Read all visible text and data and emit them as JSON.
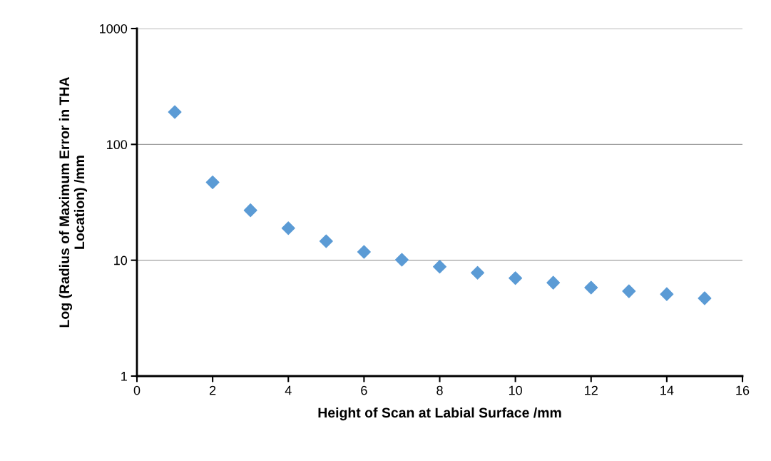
{
  "chart_data": {
    "type": "scatter",
    "xlabel": "Height of Scan at Labial Surface /mm",
    "ylabel": "Log (Radius of Maximum Error in THA\nLocation) /mm",
    "x": [
      1,
      2,
      3,
      4,
      5,
      6,
      7,
      8,
      9,
      10,
      11,
      12,
      13,
      14,
      15
    ],
    "series": [
      {
        "color": "#5b9bd5",
        "values": [
          190,
          47,
          27,
          18.9,
          14.6,
          11.8,
          10.1,
          8.8,
          7.8,
          7.0,
          6.4,
          5.8,
          5.4,
          5.1,
          4.7
        ]
      }
    ],
    "xlim": [
      0,
      16
    ],
    "xticks": [
      0,
      2,
      4,
      6,
      8,
      10,
      12,
      14,
      16
    ],
    "ylim": [
      1,
      1000
    ],
    "yticks": [
      1,
      10,
      100,
      1000
    ],
    "log": "y",
    "grid": "y",
    "marker": "diamond",
    "legend": false
  }
}
